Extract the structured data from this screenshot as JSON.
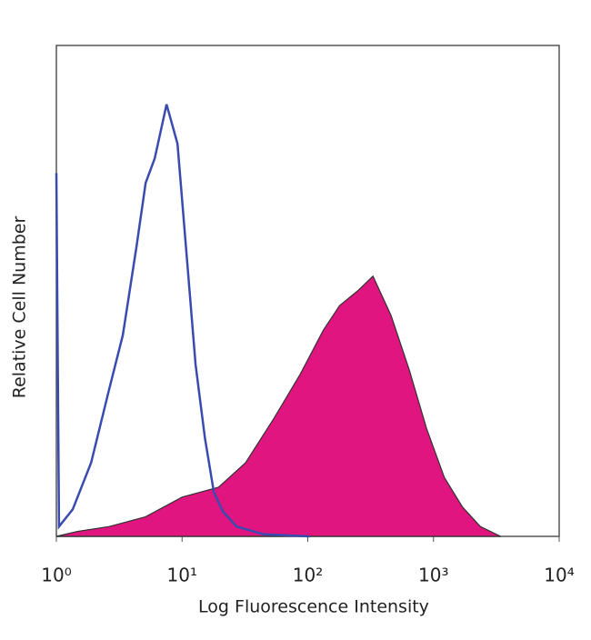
{
  "chart_data": {
    "type": "histogram-overlay",
    "x_label": "Log Fluorescence Intensity",
    "y_label": "Relative Cell Number",
    "xscale": "log",
    "xlim": [
      1,
      10000
    ],
    "ylim": [
      0,
      100
    ],
    "xticks": [
      {
        "value": 1,
        "label": "10⁰"
      },
      {
        "value": 10,
        "label": "10¹"
      },
      {
        "value": 100,
        "label": "10²"
      },
      {
        "value": 1000,
        "label": "10³"
      },
      {
        "value": 10000,
        "label": "10⁴"
      }
    ],
    "grid": false,
    "series": [
      {
        "color": "#e0157f",
        "fill": true,
        "x": [
          1,
          1.47,
          2.63,
          5.13,
          10,
          19.5,
          32,
          53.6,
          87,
          133,
          179,
          249,
          330,
          460,
          640,
          880,
          1220,
          1700,
          2360,
          3420
        ],
        "values": [
          0,
          1,
          2,
          4,
          8,
          10,
          15,
          24,
          33,
          42,
          47,
          50,
          53,
          45,
          34,
          22,
          12,
          6,
          2,
          0
        ]
      },
      {
        "color": "#3a4bb0",
        "fill": false,
        "x": [
          1,
          1.05,
          1.35,
          1.89,
          2.63,
          3.38,
          4.34,
          5.13,
          6.06,
          7.53,
          9.2,
          10.9,
          12.8,
          15.2,
          17.9,
          21.2,
          27.2,
          44.7,
          103
        ],
        "values": [
          74,
          2,
          5.5,
          15,
          30,
          41,
          59,
          72,
          77,
          88,
          80,
          57,
          35,
          20,
          9,
          5,
          2,
          0.4,
          0
        ]
      }
    ]
  }
}
